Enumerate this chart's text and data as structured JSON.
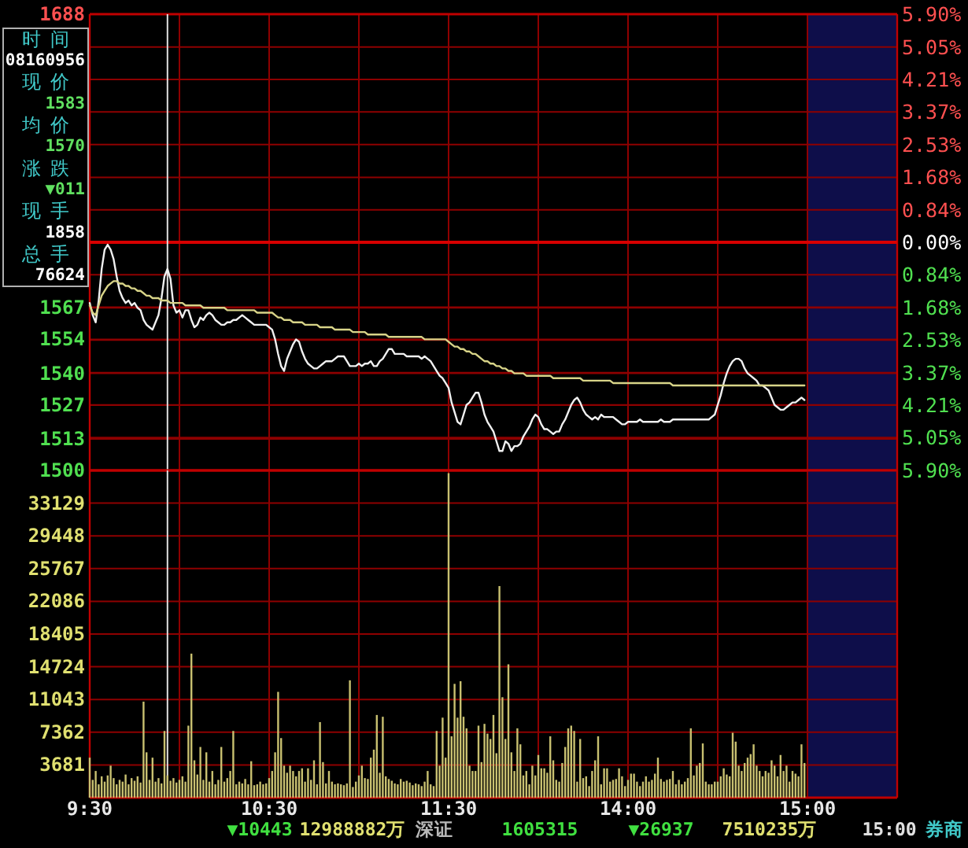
{
  "chart_data": [
    {
      "type": "line",
      "tick_labels": "y",
      "grid": true,
      "categories": [
        null,
        null,
        null,
        null,
        null,
        null,
        null,
        null,
        null,
        null,
        null,
        null,
        null,
        null,
        null,
        null,
        null,
        null,
        null,
        null,
        null,
        null,
        null,
        null,
        null,
        null,
        null,
        null,
        null,
        null,
        null,
        null,
        null,
        null,
        null,
        null,
        null,
        null,
        null,
        null,
        null,
        null,
        null,
        null,
        null,
        null,
        null,
        null,
        null,
        null,
        null,
        null,
        null,
        null,
        null,
        null,
        null,
        null,
        null,
        null,
        null,
        null,
        null,
        null,
        null,
        null,
        null,
        null,
        null,
        null,
        null,
        null,
        null,
        null,
        null,
        null,
        null,
        null,
        null,
        null,
        null,
        null,
        null,
        null,
        null,
        null,
        null,
        null,
        null,
        null,
        null,
        null,
        null,
        null,
        null,
        null,
        null,
        null,
        null,
        null,
        null,
        null,
        null,
        null,
        null,
        null,
        null,
        null,
        null,
        null,
        null,
        null,
        null,
        null,
        null,
        null,
        null,
        null,
        null,
        null,
        null,
        null,
        null,
        null,
        null,
        null,
        null,
        null,
        null,
        null,
        null,
        null,
        null,
        null,
        null,
        null,
        null,
        null,
        null,
        null,
        null,
        null,
        null,
        null,
        null,
        null,
        null,
        null,
        null,
        null,
        null,
        null,
        null,
        null,
        null,
        null,
        null,
        null,
        null,
        null,
        null,
        null,
        null,
        null,
        null,
        null,
        null,
        null,
        null,
        null,
        null,
        null,
        null,
        null,
        null,
        null,
        null,
        null,
        null,
        null,
        null,
        null,
        null,
        null,
        null,
        null,
        null,
        null,
        null,
        null,
        null,
        null,
        null,
        null,
        null,
        null,
        null,
        null,
        null,
        null,
        null,
        null,
        null,
        null,
        null,
        null,
        null,
        null,
        null,
        null,
        null,
        null,
        null,
        null,
        null,
        null,
        null,
        null,
        null,
        null,
        null,
        null,
        null,
        null,
        null,
        null,
        null,
        null,
        null,
        null,
        null,
        null,
        null,
        null,
        null,
        null,
        null,
        null,
        null,
        null,
        null
      ],
      "ylim": [
        1500,
        1688
      ],
      "yticks": [
        1500,
        1513,
        1527,
        1540,
        1554,
        1567,
        1688
      ],
      "y2lim": [
        -5.9,
        5.9
      ],
      "y2ticks": [
        {
          "value": 5.9,
          "label": "5.90%"
        },
        {
          "value": 5.05,
          "label": "5.05%"
        },
        {
          "value": 4.21,
          "label": "4.21%"
        },
        {
          "value": 3.37,
          "label": "3.37%"
        },
        {
          "value": 2.53,
          "label": "2.53%"
        },
        {
          "value": 1.68,
          "label": "1.68%"
        },
        {
          "value": 0.84,
          "label": "0.84%"
        },
        {
          "value": 0,
          "label": "0.00%"
        },
        {
          "value": -0.84,
          "label": "0.84%"
        },
        {
          "value": -1.68,
          "label": "1.68%"
        },
        {
          "value": -2.53,
          "label": "2.53%"
        },
        {
          "value": -3.37,
          "label": "3.37%"
        },
        {
          "value": -4.21,
          "label": "4.21%"
        },
        {
          "value": -5.05,
          "label": "5.05%"
        },
        {
          "value": -5.9,
          "label": "5.90%"
        }
      ],
      "ref_lines": [
        {
          "axis": "y2",
          "value": 0,
          "color": "#d80000"
        }
      ],
      "series": [
        {
          "color": "#f0f0f0",
          "values": [
            1569,
            1564,
            1561,
            1570,
            1583,
            1591,
            1593,
            1591,
            1587,
            1580,
            1574,
            1571,
            1569,
            1570,
            1568,
            1569,
            1567,
            1566,
            1562,
            1560,
            1559,
            1558,
            1561,
            1564,
            1571,
            1580,
            1583,
            1579,
            1568,
            1565,
            1566,
            1563,
            1566,
            1566,
            1562,
            1559,
            1560,
            1563,
            1562,
            1564,
            1565,
            1564,
            1562,
            1561,
            1560,
            1560,
            1561,
            1561,
            1562,
            1562,
            1563,
            1564,
            1563,
            1562,
            1561,
            1560,
            1560,
            1560,
            1560,
            1560,
            1559,
            1558,
            1554,
            1548,
            1543,
            1541,
            1546,
            1549,
            1552,
            1554,
            1553,
            1549,
            1546,
            1544,
            1543,
            1542,
            1542,
            1543,
            1544,
            1545,
            1545,
            1545,
            1546,
            1547,
            1547,
            1547,
            1545,
            1543,
            1543,
            1543,
            1544,
            1543,
            1544,
            1544,
            1545,
            1543,
            1543,
            1545,
            1546,
            1548,
            1550,
            1550,
            1548,
            1548,
            1548,
            1548,
            1547,
            1547,
            1547,
            1547,
            1547,
            1546,
            1547,
            1546,
            1545,
            1543,
            1541,
            1539,
            1538,
            1536,
            1534,
            1528,
            1524,
            1520,
            1519,
            1523,
            1527,
            1528,
            1530,
            1532,
            1532,
            1528,
            1523,
            1520,
            1518,
            1516,
            1512,
            1508,
            1508,
            1512,
            1511,
            1508,
            1510,
            1510,
            1511,
            1514,
            1516,
            1518,
            1521,
            1523,
            1522,
            1519,
            1517,
            1517,
            1516,
            1515,
            1516,
            1516,
            1519,
            1521,
            1524,
            1527,
            1529,
            1530,
            1528,
            1525,
            1523,
            1522,
            1521,
            1522,
            1521,
            1523,
            1522,
            1522,
            1522,
            1522,
            1521,
            1520,
            1519,
            1519,
            1520,
            1520,
            1520,
            1520,
            1521,
            1520,
            1520,
            1520,
            1520,
            1520,
            1520,
            1521,
            1520,
            1520,
            1520,
            1521,
            1521,
            1521,
            1521,
            1521,
            1521,
            1521,
            1521,
            1521,
            1521,
            1521,
            1521,
            1521,
            1522,
            1523,
            1527,
            1531,
            1536,
            1540,
            1543,
            1545,
            1546,
            1546,
            1545,
            1542,
            1540,
            1539,
            1538,
            1537,
            1535,
            1535,
            1534,
            1533,
            1530,
            1527,
            1526,
            1525,
            1525,
            1526,
            1527,
            1528,
            1528,
            1529,
            1530,
            1529,
            null
          ]
        },
        {
          "color": "#d8d488",
          "values": [
            1568,
            1565,
            1564,
            1568,
            1572,
            1574,
            1576,
            1577,
            1578,
            1578,
            1577,
            1577,
            1576,
            1576,
            1575,
            1575,
            1574,
            1574,
            1573,
            1572,
            1572,
            1571,
            1571,
            1571,
            1570,
            1570,
            1570,
            1569,
            1569,
            1569,
            1569,
            1569,
            1568,
            1568,
            1568,
            1568,
            1568,
            1568,
            1567,
            1567,
            1567,
            1567,
            1567,
            1567,
            1567,
            1567,
            1566,
            1566,
            1566,
            1566,
            1566,
            1566,
            1566,
            1566,
            1566,
            1566,
            1565,
            1565,
            1565,
            1565,
            1565,
            1565,
            1564,
            1563,
            1563,
            1562,
            1562,
            1562,
            1561,
            1561,
            1561,
            1561,
            1560,
            1560,
            1560,
            1560,
            1560,
            1559,
            1559,
            1559,
            1559,
            1559,
            1558,
            1558,
            1558,
            1558,
            1558,
            1558,
            1557,
            1557,
            1557,
            1557,
            1557,
            1556,
            1556,
            1556,
            1556,
            1556,
            1556,
            1556,
            1555,
            1555,
            1555,
            1555,
            1555,
            1555,
            1555,
            1555,
            1555,
            1555,
            1555,
            1555,
            1554,
            1554,
            1554,
            1554,
            1554,
            1554,
            1554,
            1554,
            1553,
            1552,
            1551,
            1551,
            1550,
            1550,
            1549,
            1549,
            1548,
            1548,
            1547,
            1546,
            1545,
            1545,
            1544,
            1544,
            1543,
            1543,
            1542,
            1542,
            1541,
            1541,
            1540,
            1540,
            1540,
            1540,
            1539,
            1539,
            1539,
            1539,
            1539,
            1539,
            1539,
            1539,
            1539,
            1538,
            1538,
            1538,
            1538,
            1538,
            1538,
            1538,
            1538,
            1538,
            1538,
            1537,
            1537,
            1537,
            1537,
            1537,
            1537,
            1537,
            1537,
            1537,
            1537,
            1536,
            1536,
            1536,
            1536,
            1536,
            1536,
            1536,
            1536,
            1536,
            1536,
            1536,
            1536,
            1536,
            1536,
            1536,
            1536,
            1536,
            1536,
            1536,
            1536,
            1535,
            1535,
            1535,
            1535,
            1535,
            1535,
            1535,
            1535,
            1535,
            1535,
            1535,
            1535,
            1535,
            1535,
            1535,
            1535,
            1535,
            1535,
            1535,
            1535,
            1535,
            1535,
            1535,
            1535,
            1535,
            1535,
            1535,
            1535,
            1535,
            1535,
            1535,
            1535,
            1535,
            1535,
            1535,
            1535,
            1535,
            1535,
            1535,
            1535,
            1535,
            1535,
            1535,
            1535,
            1535,
            null
          ]
        }
      ],
      "annotations": [
        "时间",
        "08160956",
        "现价",
        "1583",
        "均价",
        "1570",
        "涨跌",
        "▼011",
        "现手",
        "1858",
        "总手",
        "76624"
      ]
    },
    {
      "type": "bar",
      "grid": true,
      "color": "#c8c070",
      "categories": [
        "9:30",
        null,
        null,
        null,
        null,
        null,
        null,
        null,
        null,
        null,
        null,
        null,
        null,
        null,
        null,
        null,
        null,
        null,
        null,
        null,
        null,
        null,
        null,
        null,
        null,
        null,
        null,
        null,
        null,
        null,
        null,
        null,
        null,
        null,
        null,
        null,
        null,
        null,
        null,
        null,
        null,
        null,
        null,
        null,
        null,
        null,
        null,
        null,
        null,
        null,
        null,
        null,
        null,
        null,
        null,
        null,
        null,
        null,
        null,
        null,
        "10:30",
        null,
        null,
        null,
        null,
        null,
        null,
        null,
        null,
        null,
        null,
        null,
        null,
        null,
        null,
        null,
        null,
        null,
        null,
        null,
        null,
        null,
        null,
        null,
        null,
        null,
        null,
        null,
        null,
        null,
        null,
        null,
        null,
        null,
        null,
        null,
        null,
        null,
        null,
        null,
        null,
        null,
        null,
        null,
        null,
        null,
        null,
        null,
        null,
        null,
        null,
        null,
        null,
        null,
        null,
        null,
        null,
        null,
        null,
        null,
        "11:30",
        null,
        null,
        null,
        null,
        null,
        null,
        null,
        null,
        null,
        null,
        null,
        null,
        null,
        null,
        null,
        null,
        null,
        null,
        null,
        null,
        null,
        null,
        null,
        null,
        null,
        null,
        null,
        null,
        null,
        null,
        null,
        null,
        null,
        null,
        null,
        null,
        null,
        null,
        null,
        null,
        null,
        null,
        null,
        null,
        null,
        null,
        null,
        null,
        null,
        null,
        null,
        null,
        null,
        null,
        null,
        null,
        null,
        null,
        null,
        "14:00",
        null,
        null,
        null,
        null,
        null,
        null,
        null,
        null,
        null,
        null,
        null,
        null,
        null,
        null,
        null,
        null,
        null,
        null,
        null,
        null,
        null,
        null,
        null,
        null,
        null,
        null,
        null,
        null,
        null,
        null,
        null,
        null,
        null,
        null,
        null,
        null,
        null,
        null,
        null,
        null,
        null,
        null,
        null,
        null,
        null,
        null,
        null,
        null,
        null,
        null,
        null,
        null,
        null,
        null,
        null,
        null,
        null,
        null,
        null,
        "15:00"
      ],
      "ylim": [
        0,
        36810
      ],
      "yticks": [
        3681,
        7362,
        11043,
        14724,
        18405,
        22086,
        25767,
        29448,
        33129
      ],
      "values": [
        4500,
        2000,
        3000,
        1500,
        2400,
        1800,
        2500,
        3600,
        2200,
        1500,
        2000,
        1800,
        2600,
        1500,
        2200,
        1900,
        2400,
        1700,
        10800,
        5100,
        2000,
        4500,
        1800,
        2200,
        1600,
        7500,
        2500,
        1900,
        2200,
        1700,
        2000,
        2400,
        1800,
        8100,
        16200,
        4200,
        2600,
        5700,
        2000,
        5100,
        1800,
        3000,
        1500,
        2000,
        5700,
        1800,
        2200,
        3000,
        7500,
        1500,
        1800,
        1600,
        2100,
        1500,
        4100,
        1400,
        1500,
        1800,
        1500,
        1600,
        2200,
        3000,
        5100,
        11900,
        6700,
        3600,
        2800,
        3600,
        3000,
        2400,
        3000,
        3300,
        1800,
        3300,
        2000,
        4200,
        1500,
        8500,
        4000,
        1600,
        3000,
        1800,
        1500,
        1600,
        1500,
        1400,
        1600,
        13200,
        1200,
        1800,
        2500,
        3600,
        2200,
        2100,
        4500,
        5400,
        9300,
        2800,
        9100,
        2400,
        2100,
        1900,
        1600,
        1500,
        2100,
        1800,
        1900,
        1700,
        1400,
        1600,
        1500,
        1300,
        1800,
        3000,
        1500,
        1300,
        7500,
        3600,
        9000,
        4500,
        36500,
        6900,
        12800,
        9000,
        13100,
        9100,
        7800,
        3600,
        3000,
        3000,
        8100,
        4000,
        8300,
        7200,
        6600,
        9300,
        5000,
        23800,
        11300,
        6600,
        15000,
        5100,
        3000,
        7800,
        6000,
        2500,
        3000,
        1500,
        3600,
        2500,
        4800,
        3300,
        3300,
        2800,
        6900,
        4200,
        2000,
        1800,
        3900,
        5700,
        7800,
        8100,
        7500,
        1800,
        6600,
        2200,
        2400,
        1300,
        3000,
        4200,
        6900,
        1500,
        3300,
        3300,
        1800,
        2000,
        2100,
        3300,
        2400,
        1300,
        2000,
        2700,
        2700,
        1800,
        1300,
        1800,
        2400,
        1800,
        2000,
        2700,
        4500,
        2100,
        1800,
        2000,
        2100,
        3000,
        1500,
        2000,
        1500,
        1800,
        2200,
        7800,
        2500,
        3600,
        3900,
        6100,
        1800,
        1500,
        1500,
        1800,
        1800,
        2400,
        3300,
        2600,
        2400,
        7300,
        6300,
        3600,
        3000,
        3900,
        4500,
        4900,
        6000,
        3600,
        3000,
        2400,
        3000,
        2800,
        4200,
        3600,
        2400,
        4800,
        3000,
        3600,
        1800,
        3000,
        2700,
        2400,
        6000,
        3900,
        null
      ],
      "annotations": [
        "▼10443",
        "12988882万",
        "深证",
        "1605315",
        "▼26937",
        "7510235万",
        "15:00",
        "券商"
      ]
    }
  ]
}
